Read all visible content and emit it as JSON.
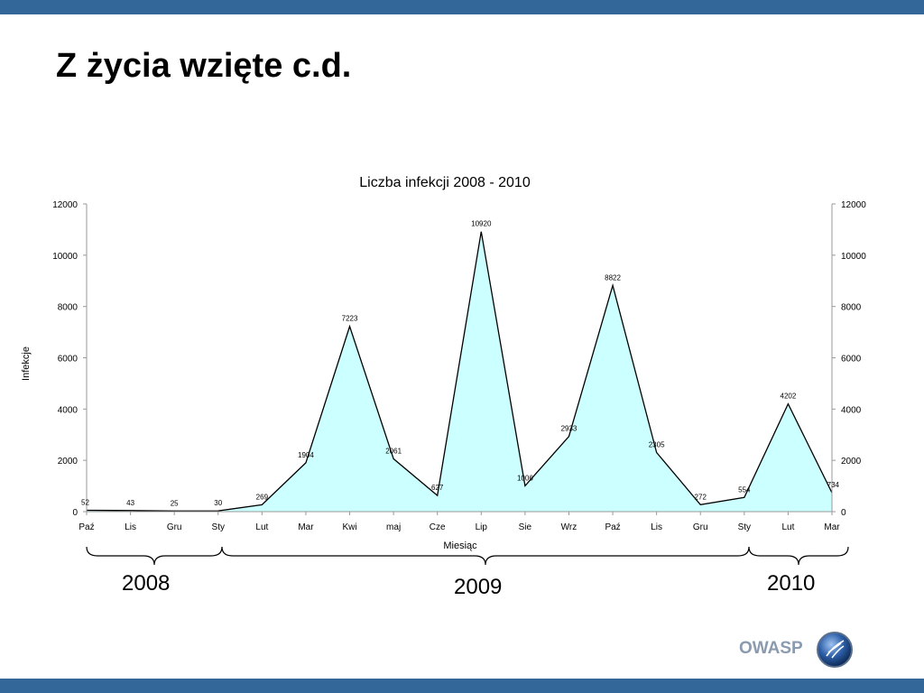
{
  "slide": {
    "title": "Z życia wzięte c.d.",
    "brand": "OWASP",
    "year_labels": [
      "2008",
      "2009",
      "2010"
    ]
  },
  "colors": {
    "bar": "#336699",
    "area_fill": "#ccffff",
    "line": "#000000"
  },
  "chart_data": {
    "type": "area",
    "title": "Liczba infekcji 2008 - 2010",
    "xlabel": "Miesiąc",
    "ylabel": "Infekcje",
    "ylim": [
      0,
      12000
    ],
    "yticks": [
      0,
      2000,
      4000,
      6000,
      8000,
      10000,
      12000
    ],
    "categories": [
      "Paź",
      "Lis",
      "Gru",
      "Sty",
      "Lut",
      "Mar",
      "Kwi",
      "maj",
      "Cze",
      "Lip",
      "Sie",
      "Wrz",
      "Paź",
      "Lis",
      "Gru",
      "Sty",
      "Lut",
      "Mar"
    ],
    "values": [
      52,
      43,
      25,
      30,
      269,
      1904,
      7223,
      2061,
      627,
      10920,
      1006,
      2933,
      8822,
      2305,
      272,
      554,
      4202,
      734
    ],
    "grid": false,
    "secondary_y_axis": true
  }
}
